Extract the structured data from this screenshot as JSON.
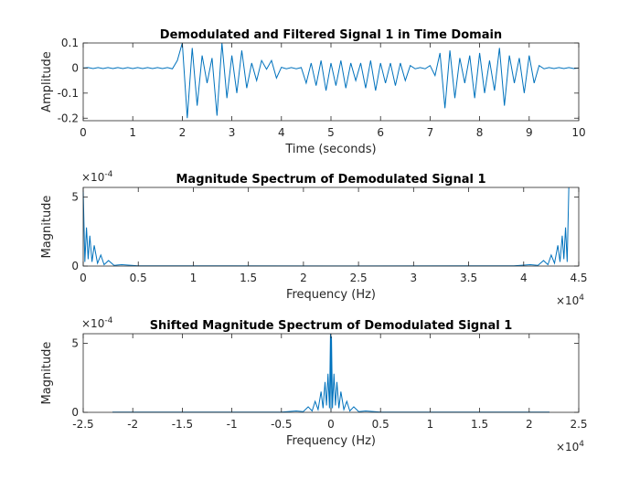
{
  "chart_data": [
    {
      "type": "line",
      "title": "Demodulated and Filtered Signal 1 in Time Domain",
      "xlabel": "Time (seconds)",
      "ylabel": "Amplitude",
      "xlim": [
        0,
        10
      ],
      "ylim": [
        -0.21,
        0.1
      ],
      "xticks": [
        0,
        1,
        2,
        3,
        4,
        5,
        6,
        7,
        8,
        9,
        10
      ],
      "yticks": [
        -0.2,
        -0.1,
        0,
        0.1
      ],
      "series": [
        {
          "color": "#0072bd",
          "x": [
            0,
            0.1,
            0.2,
            0.3,
            0.4,
            0.5,
            0.6,
            0.7,
            0.8,
            0.9,
            1,
            1.1,
            1.2,
            1.3,
            1.4,
            1.5,
            1.6,
            1.7,
            1.8,
            1.9,
            2,
            2.1,
            2.2,
            2.3,
            2.4,
            2.5,
            2.6,
            2.7,
            2.8,
            2.9,
            3,
            3.1,
            3.2,
            3.3,
            3.4,
            3.5,
            3.6,
            3.7,
            3.8,
            3.9,
            4,
            4.1,
            4.2,
            4.3,
            4.4,
            4.5,
            4.6,
            4.7,
            4.8,
            4.9,
            5,
            5.1,
            5.2,
            5.3,
            5.4,
            5.5,
            5.6,
            5.7,
            5.8,
            5.9,
            6,
            6.1,
            6.2,
            6.3,
            6.4,
            6.5,
            6.6,
            6.7,
            6.8,
            6.9,
            7,
            7.1,
            7.2,
            7.3,
            7.4,
            7.5,
            7.6,
            7.7,
            7.8,
            7.9,
            8,
            8.1,
            8.2,
            8.3,
            8.4,
            8.5,
            8.6,
            8.7,
            8.8,
            8.9,
            9,
            9.1,
            9.2,
            9.3,
            9.4,
            9.5,
            9.6,
            9.7,
            9.8,
            9.9,
            10
          ],
          "values": [
            0,
            0.002,
            -0.002,
            0.002,
            -0.002,
            0.002,
            -0.002,
            0.002,
            -0.002,
            0.002,
            -0.002,
            0.002,
            -0.002,
            0.002,
            -0.002,
            0.002,
            -0.002,
            0.002,
            -0.003,
            0.03,
            0.1,
            -0.2,
            0.08,
            -0.15,
            0.05,
            -0.06,
            0.04,
            -0.19,
            0.1,
            -0.12,
            0.05,
            -0.1,
            0.07,
            -0.08,
            0.02,
            -0.05,
            0.03,
            -0.005,
            0.03,
            -0.04,
            0.003,
            -0.003,
            0.002,
            -0.003,
            0.002,
            -0.06,
            0.02,
            -0.07,
            0.03,
            -0.09,
            0.02,
            -0.07,
            0.03,
            -0.08,
            0.02,
            -0.05,
            0.02,
            -0.08,
            0.03,
            -0.09,
            0.02,
            -0.06,
            0.02,
            -0.07,
            0.02,
            -0.05,
            0.01,
            -0.003,
            0.002,
            -0.003,
            0.01,
            -0.03,
            0.06,
            -0.16,
            0.07,
            -0.12,
            0.04,
            -0.06,
            0.05,
            -0.12,
            0.06,
            -0.1,
            0.03,
            -0.09,
            0.08,
            -0.15,
            0.05,
            -0.06,
            0.04,
            -0.1,
            0.05,
            -0.06,
            0.01,
            -0.003,
            0.002,
            -0.002,
            0.002,
            -0.002,
            0.002,
            -0.002,
            0
          ]
        }
      ]
    },
    {
      "type": "line",
      "title": "Magnitude Spectrum of Demodulated Signal 1",
      "xlabel": "Frequency (Hz)",
      "ylabel": "Magnitude",
      "x_multiplier": {
        "base": "×10",
        "exponent": "4"
      },
      "y_multiplier": {
        "base": "×10",
        "exponent": "-4"
      },
      "xlim": [
        0,
        45000
      ],
      "ylim": [
        0,
        0.00057
      ],
      "xticks": [
        0,
        {
          "value": 5000,
          "label": "0.5"
        },
        {
          "value": 10000,
          "label": "1"
        },
        {
          "value": 15000,
          "label": "1.5"
        },
        {
          "value": 20000,
          "label": "2"
        },
        {
          "value": 25000,
          "label": "2.5"
        },
        {
          "value": 30000,
          "label": "3"
        },
        {
          "value": 35000,
          "label": "3.5"
        },
        {
          "value": 40000,
          "label": "4"
        },
        {
          "value": 45000,
          "label": "4.5"
        }
      ],
      "yticks": [
        0,
        {
          "value": 0.0005,
          "label": "5"
        }
      ],
      "series": [
        {
          "color": "#0072bd",
          "x": [
            0,
            150,
            300,
            450,
            600,
            800,
            1000,
            1300,
            1600,
            1900,
            2300,
            2800,
            3500,
            5000,
            22050,
            39100,
            40600,
            41300,
            41800,
            42200,
            42500,
            42800,
            43100,
            43300,
            43500,
            43650,
            43800,
            43950,
            44100
          ],
          "values": [
            0.00055,
            3e-05,
            0.00028,
            5e-05,
            0.00022,
            3e-05,
            0.00015,
            2e-05,
            8e-05,
            1e-05,
            4e-05,
            5e-06,
            1e-05,
            2e-06,
            1e-06,
            2e-06,
            1e-05,
            5e-06,
            4e-05,
            1e-05,
            8e-05,
            2e-05,
            0.00015,
            3e-05,
            0.00022,
            5e-05,
            0.00028,
            3e-05,
            0.00057
          ]
        }
      ]
    },
    {
      "type": "line",
      "title": "Shifted Magnitude Spectrum of Demodulated Signal 1",
      "xlabel": "Frequency (Hz)",
      "ylabel": "Magnitude",
      "x_multiplier": {
        "base": "×10",
        "exponent": "4"
      },
      "y_multiplier": {
        "base": "×10",
        "exponent": "-4"
      },
      "xlim": [
        -25000,
        25000
      ],
      "ylim": [
        0,
        0.00057
      ],
      "xticks": [
        {
          "value": -25000,
          "label": "-2.5"
        },
        {
          "value": -20000,
          "label": "-2"
        },
        {
          "value": -15000,
          "label": "-1.5"
        },
        {
          "value": -10000,
          "label": "-1"
        },
        {
          "value": -5000,
          "label": "-0.5"
        },
        0,
        {
          "value": 5000,
          "label": "0.5"
        },
        {
          "value": 10000,
          "label": "1"
        },
        {
          "value": 15000,
          "label": "1.5"
        },
        {
          "value": 20000,
          "label": "2"
        },
        {
          "value": 25000,
          "label": "2.5"
        }
      ],
      "yticks": [
        0,
        {
          "value": 0.0005,
          "label": "5"
        }
      ],
      "series": [
        {
          "color": "#0072bd",
          "x": [
            -22050,
            -5000,
            -3500,
            -2800,
            -2300,
            -1900,
            -1600,
            -1300,
            -1000,
            -800,
            -600,
            -450,
            -300,
            -150,
            -50,
            0,
            50,
            150,
            300,
            450,
            600,
            800,
            1000,
            1300,
            1600,
            1900,
            2300,
            2800,
            3500,
            5000,
            22050
          ],
          "values": [
            2e-06,
            2e-06,
            1e-05,
            5e-06,
            4e-05,
            1e-05,
            8e-05,
            2e-05,
            0.00015,
            3e-05,
            0.00022,
            5e-05,
            0.00028,
            3e-05,
            0.00057,
            1e-05,
            0.00055,
            3e-05,
            0.00028,
            5e-05,
            0.00022,
            3e-05,
            0.00015,
            2e-05,
            8e-05,
            1e-05,
            4e-05,
            5e-06,
            1e-05,
            2e-06,
            2e-06
          ]
        }
      ]
    }
  ]
}
